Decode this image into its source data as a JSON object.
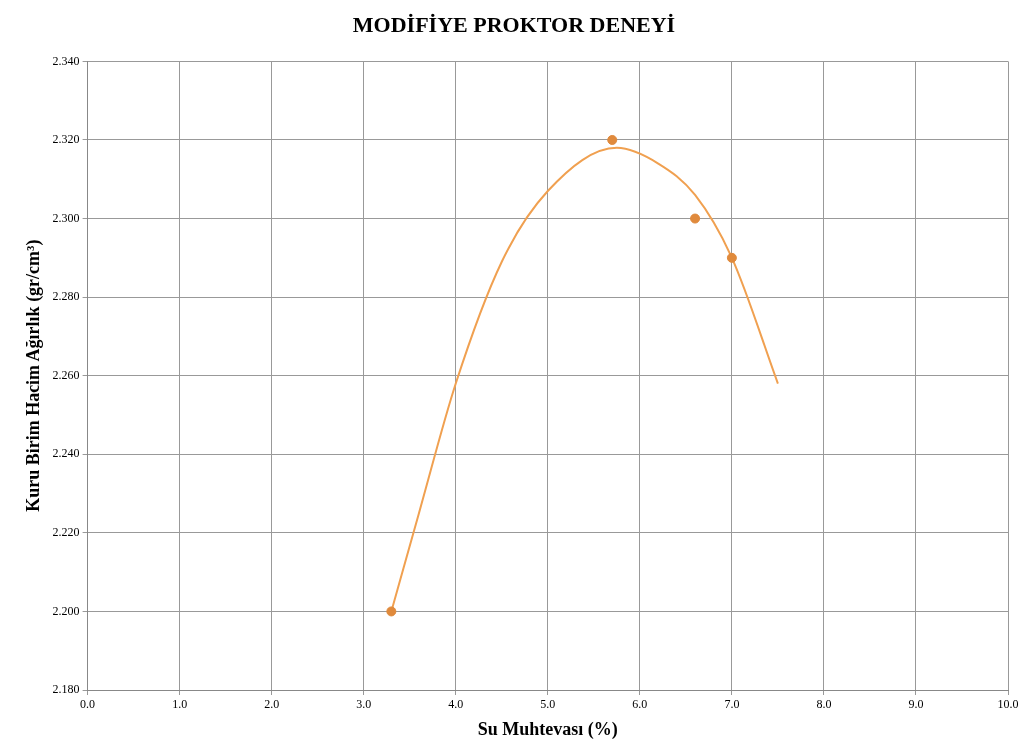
{
  "chart_data": {
    "type": "scatter",
    "title": "MODİFİYE PROKTOR DENEYİ",
    "xlabel": "Su Muhtevası (%)",
    "ylabel": "Kuru Birim Hacim Ağırlık (gr/cm³)",
    "xlim": [
      0,
      10
    ],
    "ylim": [
      2.18,
      2.34
    ],
    "xticks": [
      {
        "value": 0,
        "label": "0.0"
      },
      {
        "value": 1,
        "label": "1.0"
      },
      {
        "value": 2,
        "label": "2.0"
      },
      {
        "value": 3,
        "label": "3.0"
      },
      {
        "value": 4,
        "label": "4.0"
      },
      {
        "value": 5,
        "label": "5.0"
      },
      {
        "value": 6,
        "label": "6.0"
      },
      {
        "value": 7,
        "label": "7.0"
      },
      {
        "value": 8,
        "label": "8.0"
      },
      {
        "value": 9,
        "label": "9.0"
      },
      {
        "value": 10,
        "label": "10.0"
      }
    ],
    "yticks": [
      {
        "value": 2.18,
        "label": "2.180"
      },
      {
        "value": 2.2,
        "label": "2.200"
      },
      {
        "value": 2.22,
        "label": "2.220"
      },
      {
        "value": 2.24,
        "label": "2.240"
      },
      {
        "value": 2.26,
        "label": "2.260"
      },
      {
        "value": 2.28,
        "label": "2.280"
      },
      {
        "value": 2.3,
        "label": "2.300"
      },
      {
        "value": 2.32,
        "label": "2.320"
      },
      {
        "value": 2.34,
        "label": "2.340"
      }
    ],
    "grid": true,
    "legend": false,
    "marker": "circle",
    "series": [
      {
        "type": "scatter",
        "color": "#e08a3c",
        "x": [
          3.3,
          5.7,
          6.6,
          7.0
        ],
        "values": [
          2.2,
          2.32,
          2.3,
          2.29
        ]
      },
      {
        "type": "line",
        "color": "#f0a050",
        "marker": "none",
        "x": [
          3.3,
          3.6,
          4.0,
          4.5,
          5.0,
          5.75,
          6.2,
          6.6,
          7.0,
          7.5
        ],
        "values": [
          2.2,
          2.225,
          2.258,
          2.289,
          2.307,
          2.318,
          2.314,
          2.306,
          2.29,
          2.258
        ]
      }
    ]
  }
}
